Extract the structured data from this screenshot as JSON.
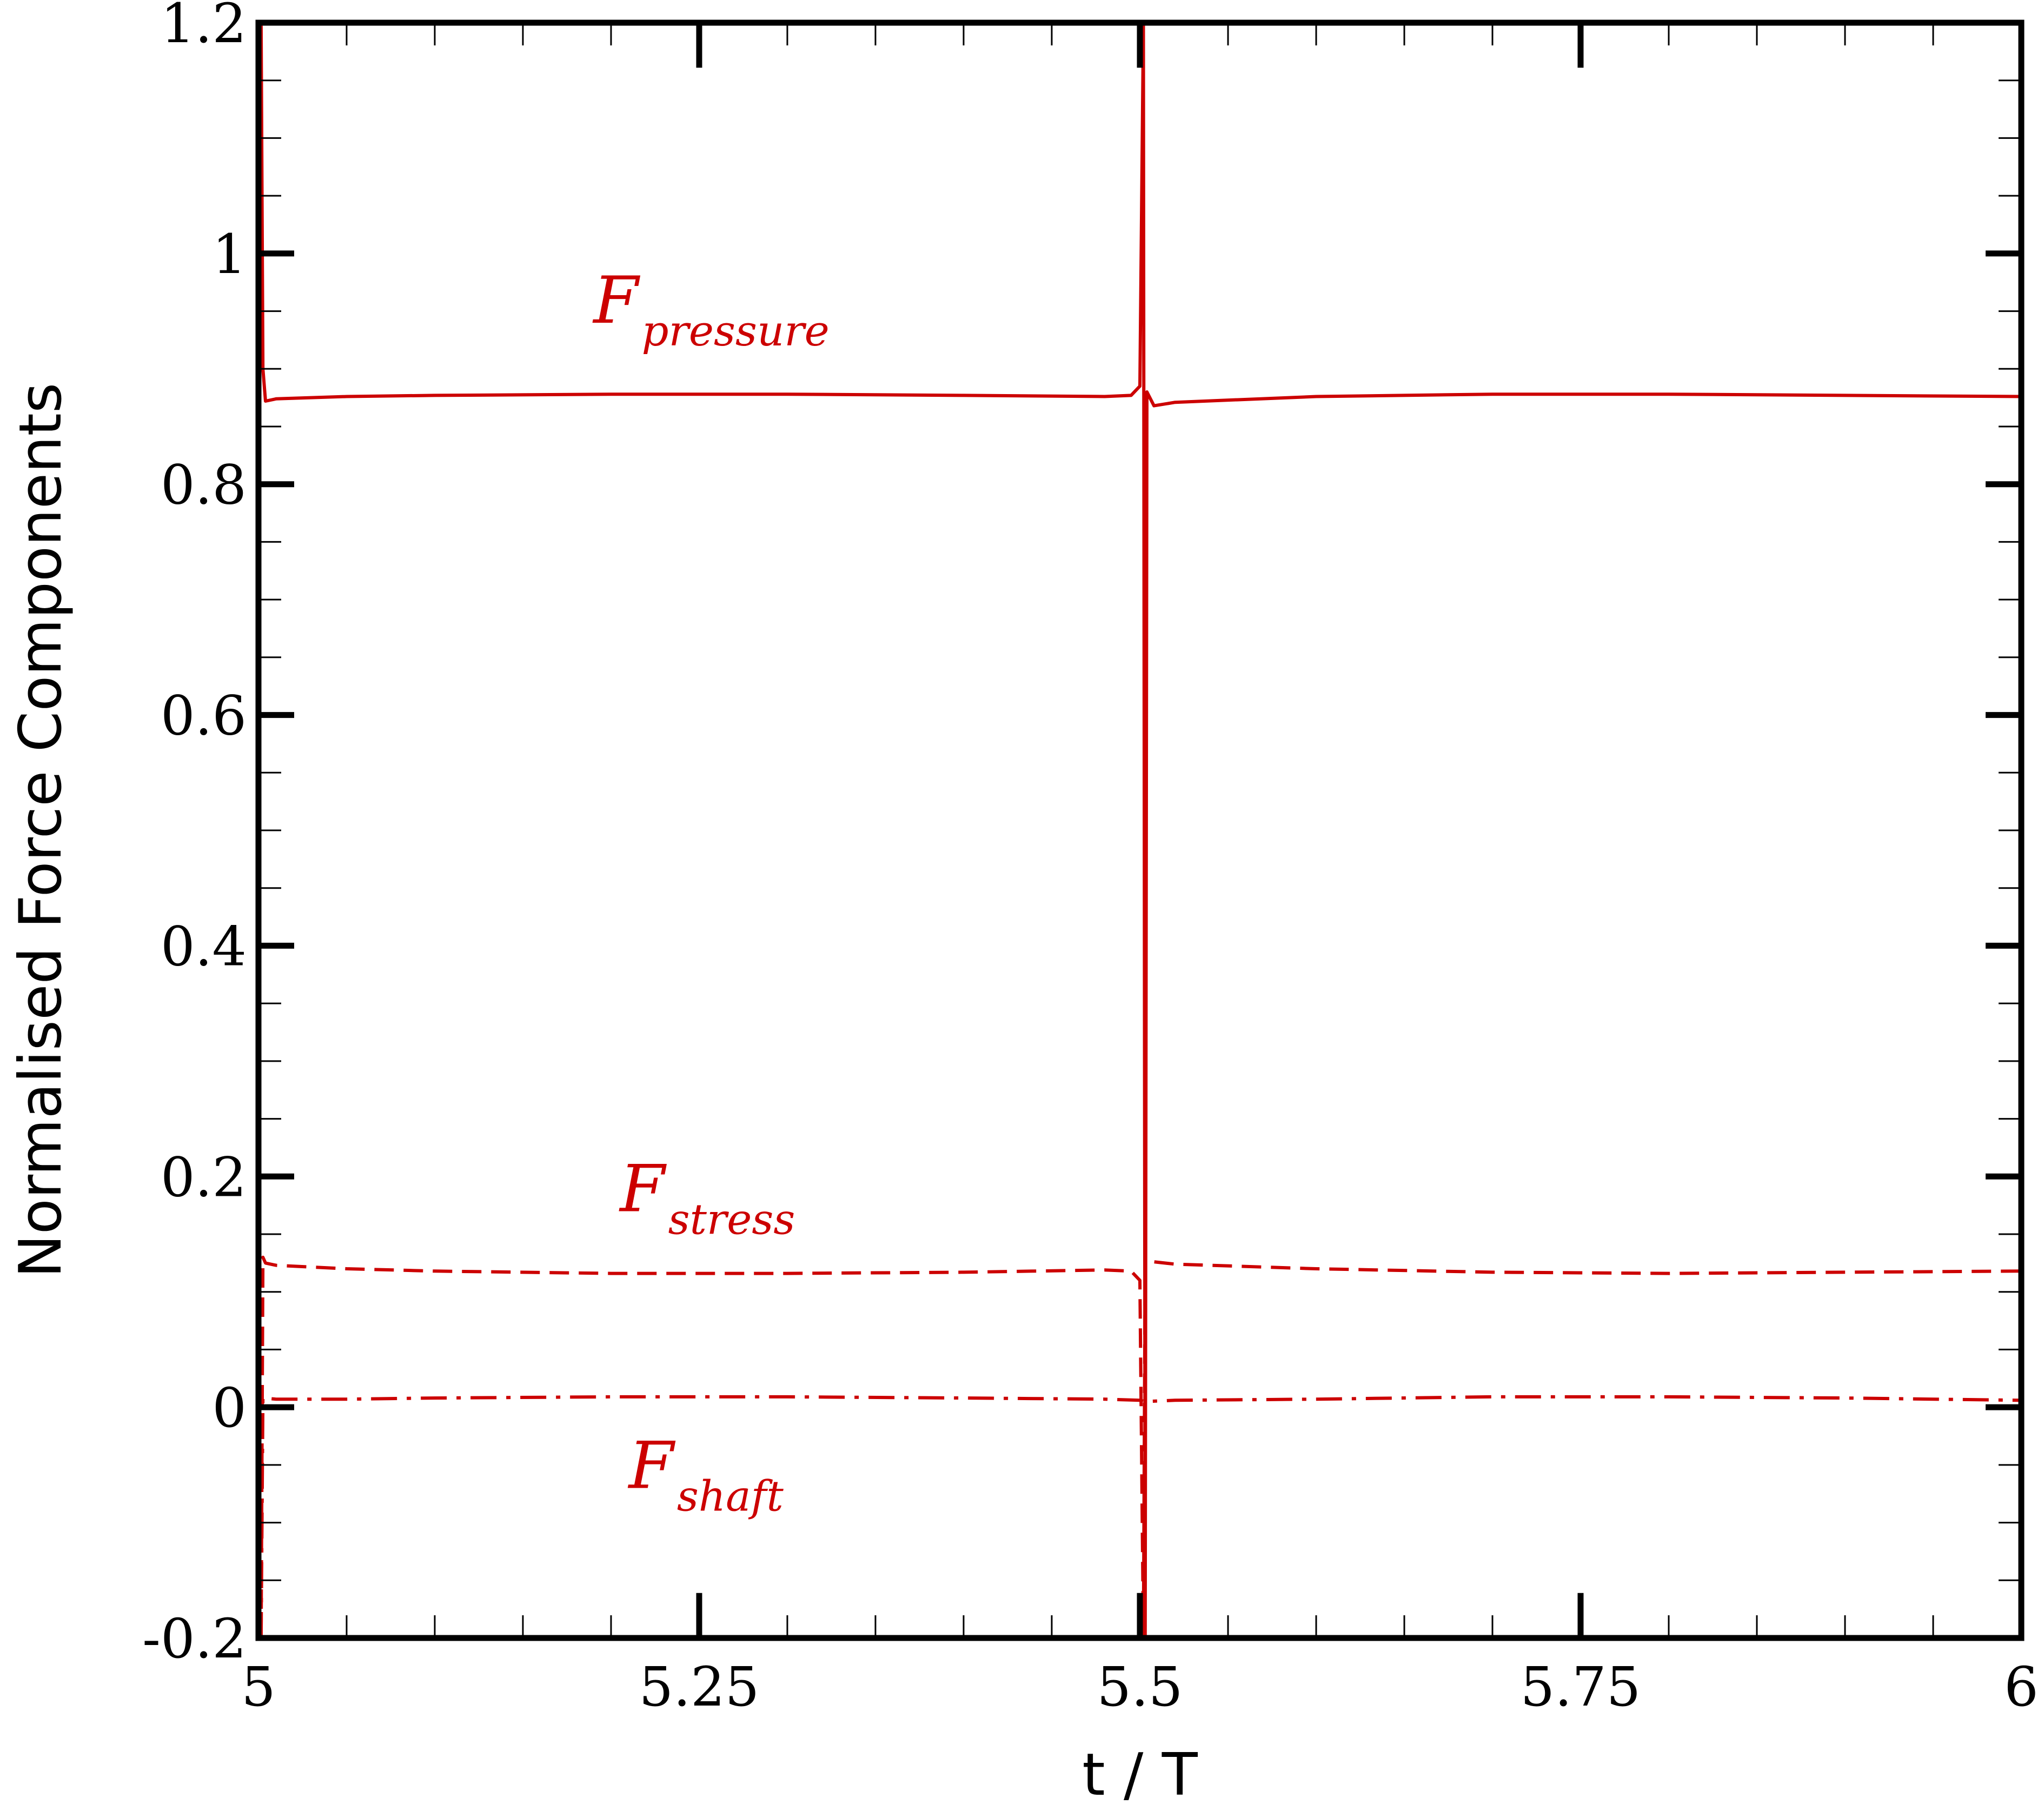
{
  "chart_data": {
    "type": "line",
    "xlabel": "t / T",
    "ylabel": "Normalised Force Components",
    "xlim": [
      5,
      6
    ],
    "ylim": [
      -0.2,
      1.2
    ],
    "x_ticks": [
      5,
      5.25,
      5.5,
      5.75,
      6
    ],
    "x_tick_labels": [
      "5",
      "5.25",
      "5.5",
      "5.75",
      "6"
    ],
    "y_ticks": [
      -0.2,
      0,
      0.2,
      0.4,
      0.6,
      0.8,
      1,
      1.2
    ],
    "y_tick_labels": [
      "-0.2",
      "0",
      "0.2",
      "0.4",
      "0.6",
      "0.8",
      "1",
      "1.2"
    ],
    "grid": false,
    "colors": {
      "series": "#cc0000",
      "axis": "#000000"
    },
    "series": [
      {
        "label_main": "F",
        "label_sub": "pressure",
        "style": "solid",
        "points": [
          [
            5.0,
            1.2
          ],
          [
            5.0015,
            1.2
          ],
          [
            5.0025,
            0.9
          ],
          [
            5.004,
            0.872
          ],
          [
            5.01,
            0.874
          ],
          [
            5.05,
            0.876
          ],
          [
            5.1,
            0.877
          ],
          [
            5.2,
            0.878
          ],
          [
            5.3,
            0.878
          ],
          [
            5.4,
            0.877
          ],
          [
            5.48,
            0.876
          ],
          [
            5.495,
            0.877
          ],
          [
            5.5,
            0.885
          ],
          [
            5.502,
            1.2
          ],
          [
            5.503,
            -0.2
          ],
          [
            5.504,
            0.88
          ],
          [
            5.508,
            0.868
          ],
          [
            5.52,
            0.871
          ],
          [
            5.6,
            0.876
          ],
          [
            5.7,
            0.878
          ],
          [
            5.8,
            0.878
          ],
          [
            5.9,
            0.877
          ],
          [
            6.0,
            0.876
          ]
        ]
      },
      {
        "label_main": "F",
        "label_sub": "stress",
        "style": "dashed",
        "points": [
          [
            5.0015,
            -0.2
          ],
          [
            5.0025,
            0.13
          ],
          [
            5.004,
            0.125
          ],
          [
            5.01,
            0.123
          ],
          [
            5.05,
            0.12
          ],
          [
            5.1,
            0.118
          ],
          [
            5.2,
            0.116
          ],
          [
            5.3,
            0.116
          ],
          [
            5.4,
            0.117
          ],
          [
            5.48,
            0.119
          ],
          [
            5.495,
            0.118
          ],
          [
            5.5,
            0.11
          ],
          [
            5.502,
            -0.2
          ],
          [
            5.503,
            0.13
          ],
          [
            5.508,
            0.126
          ],
          [
            5.52,
            0.124
          ],
          [
            5.6,
            0.12
          ],
          [
            5.7,
            0.117
          ],
          [
            5.8,
            0.116
          ],
          [
            5.9,
            0.117
          ],
          [
            6.0,
            0.118
          ]
        ]
      },
      {
        "label_main": "F",
        "label_sub": "shaft",
        "style": "dashdot",
        "points": [
          [
            5.0015,
            -0.2
          ],
          [
            5.0025,
            0.008
          ],
          [
            5.01,
            0.007
          ],
          [
            5.05,
            0.007
          ],
          [
            5.1,
            0.008
          ],
          [
            5.2,
            0.009
          ],
          [
            5.3,
            0.009
          ],
          [
            5.4,
            0.008
          ],
          [
            5.48,
            0.007
          ],
          [
            5.5,
            0.006
          ],
          [
            5.503,
            0.005
          ],
          [
            5.52,
            0.006
          ],
          [
            5.6,
            0.007
          ],
          [
            5.7,
            0.009
          ],
          [
            5.8,
            0.009
          ],
          [
            5.9,
            0.008
          ],
          [
            6.0,
            0.006
          ]
        ]
      }
    ],
    "annotations": [
      {
        "main": "F",
        "sub": "pressure",
        "x": 5.19,
        "y": 0.94
      },
      {
        "main": "F",
        "sub": "stress",
        "x": 5.205,
        "y": 0.17
      },
      {
        "main": "F",
        "sub": "shaft",
        "x": 5.21,
        "y": -0.07
      }
    ]
  }
}
